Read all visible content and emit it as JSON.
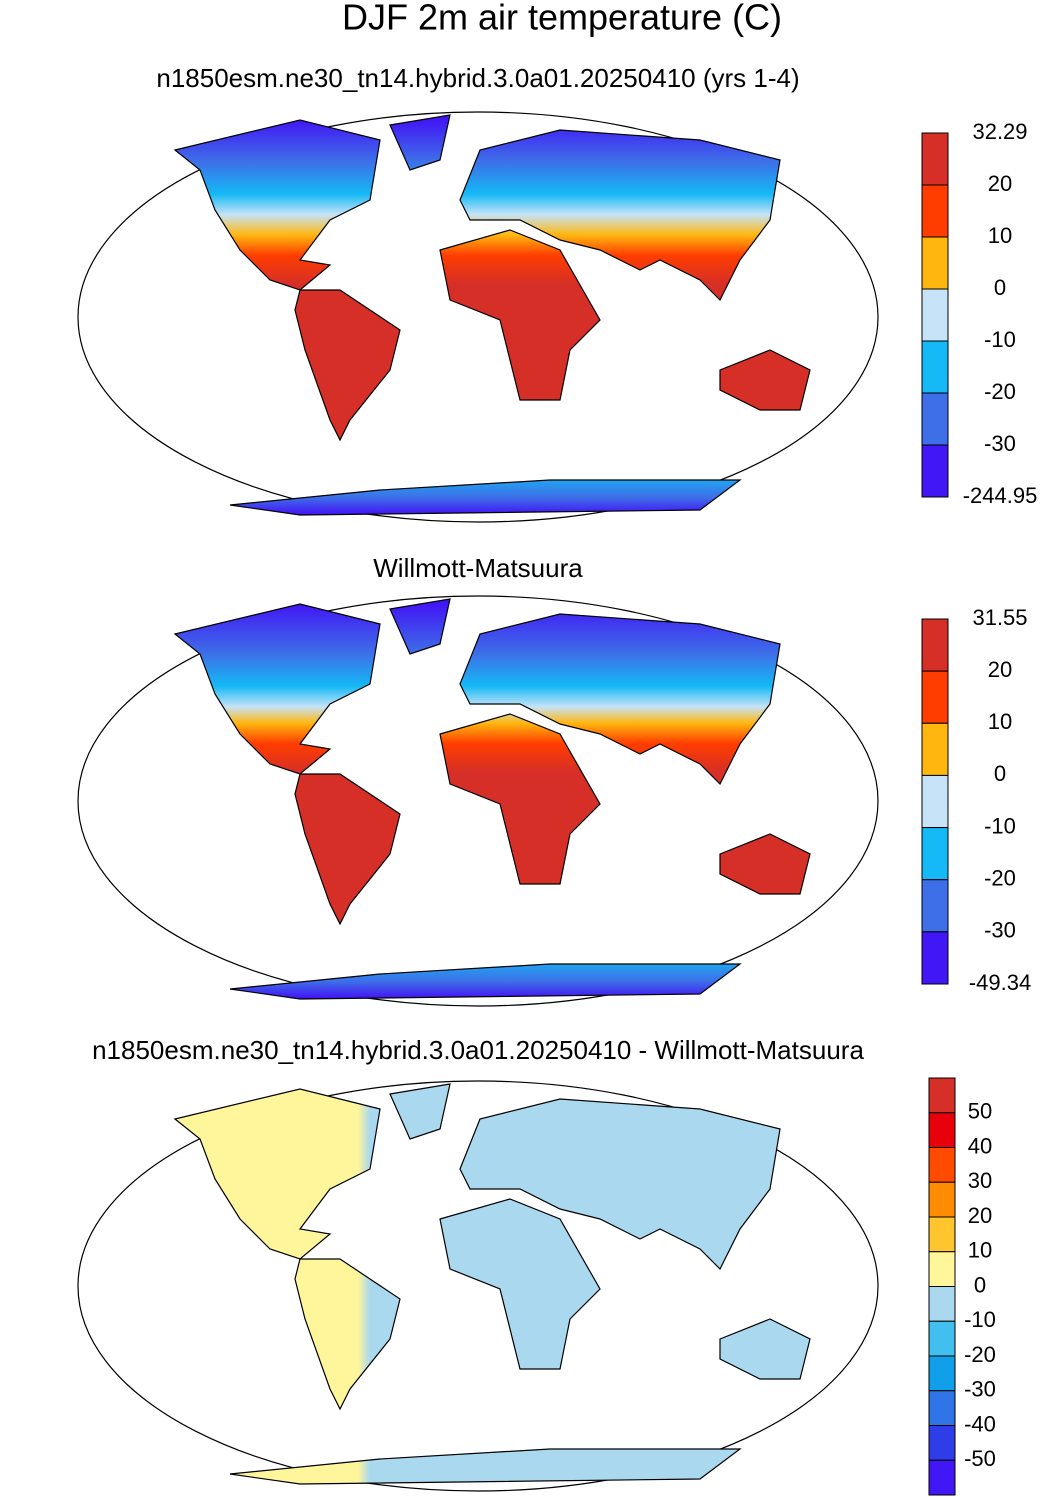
{
  "title": "DJF 2m air temperature (C)",
  "panels": [
    {
      "subtitle": "n1850esm.ne30_tn14.hybrid.3.0a01.20250410 (yrs 1-4)",
      "colorbar": {
        "labels": [
          32.29,
          20,
          10,
          0,
          -10,
          -20,
          -30,
          -244.95
        ],
        "colors": [
          "#d62f27",
          "#ff3d00",
          "#ffb60f",
          "#c6e3f7",
          "#14b9f5",
          "#3e6fe8",
          "#4217f5"
        ]
      }
    },
    {
      "subtitle": "Willmott-Matsuura",
      "colorbar": {
        "labels": [
          31.55,
          20,
          10,
          0,
          -10,
          -20,
          -30,
          -49.34
        ],
        "colors": [
          "#d62f27",
          "#ff3d00",
          "#ffb60f",
          "#c6e3f7",
          "#14b9f5",
          "#3e6fe8",
          "#4217f5"
        ]
      }
    },
    {
      "subtitle": "n1850esm.ne30_tn14.hybrid.3.0a01.20250410 - Willmott-Matsuura",
      "colorbar": {
        "labels": [
          50,
          40,
          30,
          20,
          10,
          0,
          -10,
          -20,
          -30,
          -40,
          -50
        ],
        "colors": [
          "#d62f27",
          "#e8000b",
          "#ff4b00",
          "#ff8c00",
          "#ffc52e",
          "#fff59b",
          "#a9d8ef",
          "#41bfee",
          "#119fe9",
          "#2f75e8",
          "#2f3de8",
          "#4217f5"
        ]
      }
    }
  ]
}
